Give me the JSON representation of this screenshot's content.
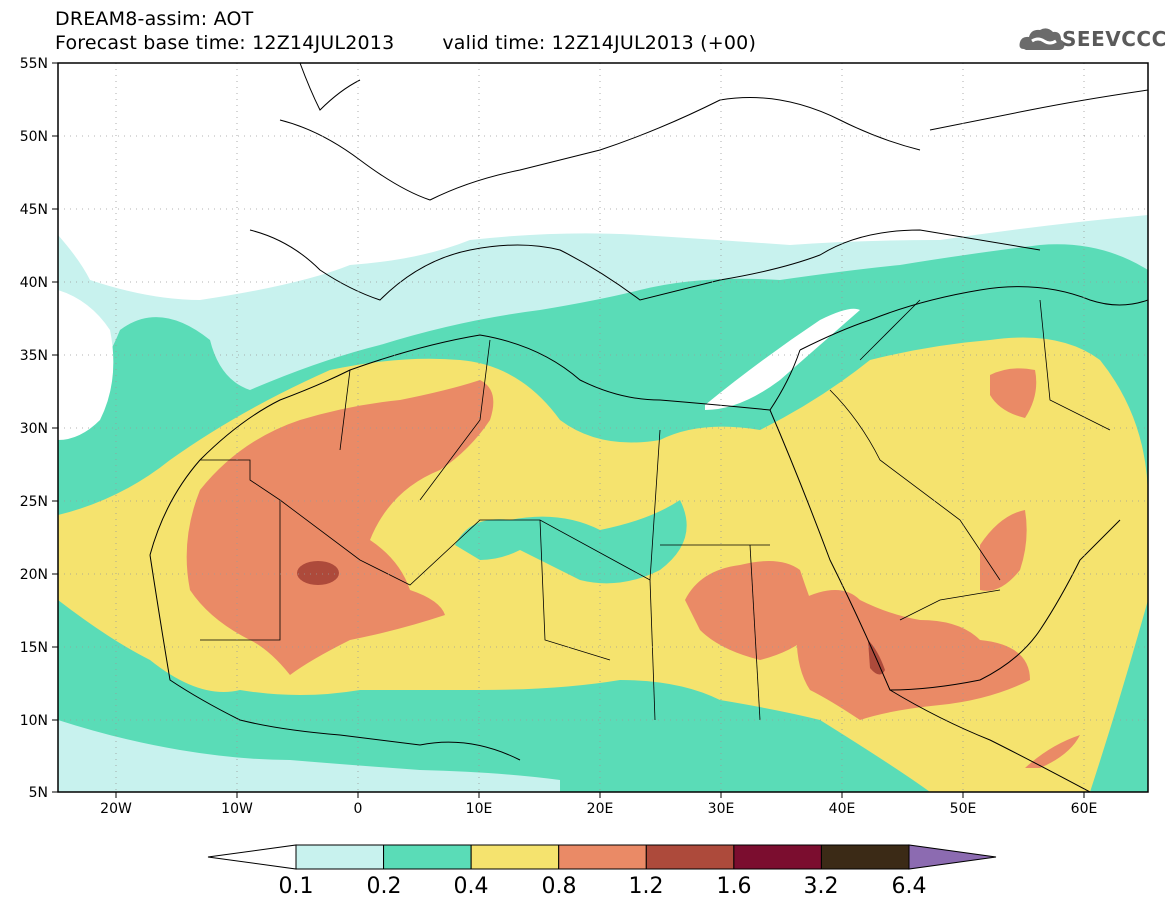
{
  "header": {
    "title_line1": "DREAM8-assim: AOT",
    "base_time": "Forecast base time: 12Z14JUL2013",
    "valid_time": "valid time: 12Z14JUL2013 (+00)",
    "logo_text": "SEEVCCC",
    "logo_icon": "cloud-icon"
  },
  "map": {
    "lat_labels": [
      "55N",
      "50N",
      "45N",
      "40N",
      "35N",
      "30N",
      "25N",
      "20N",
      "15N",
      "10N",
      "5N"
    ],
    "lon_labels": [
      "20W",
      "10W",
      "0",
      "10E",
      "20E",
      "30E",
      "40E",
      "50E",
      "60E"
    ],
    "extent": {
      "lon_min": -25,
      "lon_max": 65,
      "lat_min": 5,
      "lat_max": 55
    }
  },
  "legend": {
    "levels": [
      "0.1",
      "0.2",
      "0.4",
      "0.8",
      "1.2",
      "1.6",
      "3.2",
      "6.4"
    ],
    "colors": [
      "#c8f2ee",
      "#5adcb7",
      "#f5e36e",
      "#ea8a66",
      "#ad4a3b",
      "#7b0d2f",
      "#3b2a16"
    ],
    "below_color": "#ffffff",
    "above_color": "#8c6bb1"
  }
}
